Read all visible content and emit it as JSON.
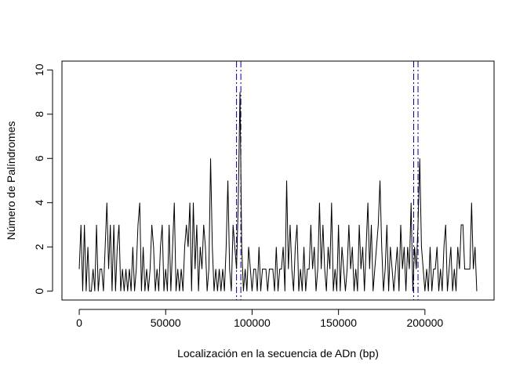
{
  "chart_data": {
    "type": "line",
    "title": "",
    "xlabel": "Localización en la secuencia de ADn (bp)",
    "ylabel": "Número de Palíndromes",
    "xlim": [
      -10000,
      240000
    ],
    "ylim": [
      -0.4,
      10.4
    ],
    "x_ticks": [
      0,
      50000,
      100000,
      150000,
      200000
    ],
    "x_tick_labels": [
      "0",
      "50000",
      "100000",
      "150000",
      "200000"
    ],
    "y_ticks": [
      0,
      2,
      4,
      6,
      8,
      10
    ],
    "y_tick_labels": [
      "0",
      "2",
      "4",
      "6",
      "8",
      "10"
    ],
    "grid": false,
    "legend": "none",
    "line_color": "#000000",
    "marker_color": "#00008b",
    "series": [
      {
        "x": [
          0,
          1000,
          2000,
          3000,
          4000,
          5000,
          6000,
          7000,
          8000,
          9000,
          10000,
          11000,
          12000,
          13000,
          14000,
          15000,
          16000,
          17000,
          18000,
          19000,
          20000,
          21000,
          22000,
          23000,
          24000,
          25000,
          26000,
          27000,
          28000,
          29000,
          30000,
          31000,
          32000,
          33000,
          34000,
          35000,
          36000,
          37000,
          38000,
          39000,
          40000,
          41000,
          42000,
          43000,
          44000,
          45000,
          46000,
          47000,
          48000,
          49000,
          50000,
          51000,
          52000,
          53000,
          54000,
          55000,
          56000,
          57000,
          58000,
          59000,
          60000,
          61000,
          62000,
          63000,
          64000,
          65000,
          66000,
          67000,
          68000,
          69000,
          70000,
          71000,
          72000,
          73000,
          74000,
          75000,
          76000,
          77000,
          78000,
          79000,
          80000,
          81000,
          82000,
          83000,
          84000,
          85000,
          86000,
          87000,
          88000,
          89000,
          90000,
          91000,
          92000,
          93000,
          94000,
          95000,
          96000,
          97000,
          98000,
          99000,
          100000,
          101000,
          102000,
          103000,
          104000,
          105000,
          106000,
          107000,
          108000,
          109000,
          110000,
          111000,
          112000,
          113000,
          114000,
          115000,
          116000,
          117000,
          118000,
          119000,
          120000,
          121000,
          122000,
          123000,
          124000,
          125000,
          126000,
          127000,
          128000,
          129000,
          130000,
          131000,
          132000,
          133000,
          134000,
          135000,
          136000,
          137000,
          138000,
          139000,
          140000,
          141000,
          142000,
          143000,
          144000,
          145000,
          146000,
          147000,
          148000,
          149000,
          150000,
          151000,
          152000,
          153000,
          154000,
          155000,
          156000,
          157000,
          158000,
          159000,
          160000,
          161000,
          162000,
          163000,
          164000,
          165000,
          166000,
          167000,
          168000,
          169000,
          170000,
          171000,
          172000,
          173000,
          174000,
          175000,
          176000,
          177000,
          178000,
          179000,
          180000,
          181000,
          182000,
          183000,
          184000,
          185000,
          186000,
          187000,
          188000,
          189000,
          190000,
          191000,
          192000,
          193000,
          194000,
          195000,
          196000,
          197000,
          198000,
          199000,
          200000,
          201000,
          202000,
          203000,
          204000,
          205000,
          206000,
          207000,
          208000,
          209000,
          210000,
          211000,
          212000,
          213000,
          214000,
          215000,
          216000,
          217000,
          218000,
          219000,
          220000,
          221000,
          222000,
          223000,
          224000,
          225000,
          226000,
          227000,
          228000,
          229000,
          230000
        ],
        "y": [
          1,
          3,
          0,
          3,
          0,
          2,
          0,
          0,
          1,
          0,
          3,
          0,
          1,
          1,
          0,
          2,
          4,
          1,
          3,
          0,
          3,
          0,
          2,
          3,
          0,
          1,
          0,
          1,
          0,
          1,
          0,
          2,
          0,
          1,
          3,
          4,
          0,
          2,
          0,
          1,
          0,
          1,
          3,
          2,
          0,
          1,
          0,
          2,
          3,
          0,
          1,
          0,
          3,
          0,
          2,
          4,
          0,
          1,
          0,
          1,
          0,
          2,
          3,
          2,
          4,
          0,
          4,
          1,
          3,
          0,
          2,
          1,
          3,
          2,
          0,
          1,
          6,
          2,
          0,
          1,
          0,
          1,
          0,
          1,
          0,
          2,
          5,
          1,
          0,
          3,
          2,
          1,
          4,
          9,
          2,
          0,
          1,
          0,
          2,
          1,
          0,
          1,
          1,
          0,
          2,
          0,
          1,
          1,
          1,
          0,
          1,
          1,
          1,
          0,
          2,
          0,
          1,
          1,
          2,
          0,
          5,
          1,
          3,
          1,
          0,
          2,
          3,
          0,
          1,
          0,
          2,
          0,
          1,
          1,
          3,
          1,
          2,
          0,
          1,
          4,
          1,
          3,
          1,
          0,
          2,
          1,
          4,
          0,
          1,
          0,
          3,
          0,
          2,
          1,
          0,
          1,
          3,
          1,
          2,
          0,
          1,
          0,
          3,
          1,
          2,
          0,
          2,
          4,
          1,
          3,
          0,
          1,
          2,
          3,
          5,
          2,
          0,
          1,
          3,
          0,
          2,
          1,
          0,
          1,
          2,
          0,
          3,
          1,
          2,
          0,
          2,
          1,
          4,
          0,
          2,
          1,
          3,
          6,
          2,
          1,
          0,
          1,
          0,
          2,
          0,
          1,
          1,
          2,
          0,
          1,
          0,
          2,
          3,
          0,
          1,
          2,
          0,
          1,
          0,
          2,
          1,
          3,
          3,
          1,
          1,
          1,
          1,
          4,
          1,
          2,
          0
        ]
      }
    ],
    "annotations": [
      {
        "type": "vline",
        "x": 91000,
        "color": "#00008b",
        "style": "dashdot"
      },
      {
        "type": "vline",
        "x": 93500,
        "color": "#00008b",
        "style": "dashdot"
      },
      {
        "type": "vline",
        "x": 193500,
        "color": "#00008b",
        "style": "dashdot"
      },
      {
        "type": "vline",
        "x": 196000,
        "color": "#00008b",
        "style": "dashdot"
      }
    ]
  }
}
